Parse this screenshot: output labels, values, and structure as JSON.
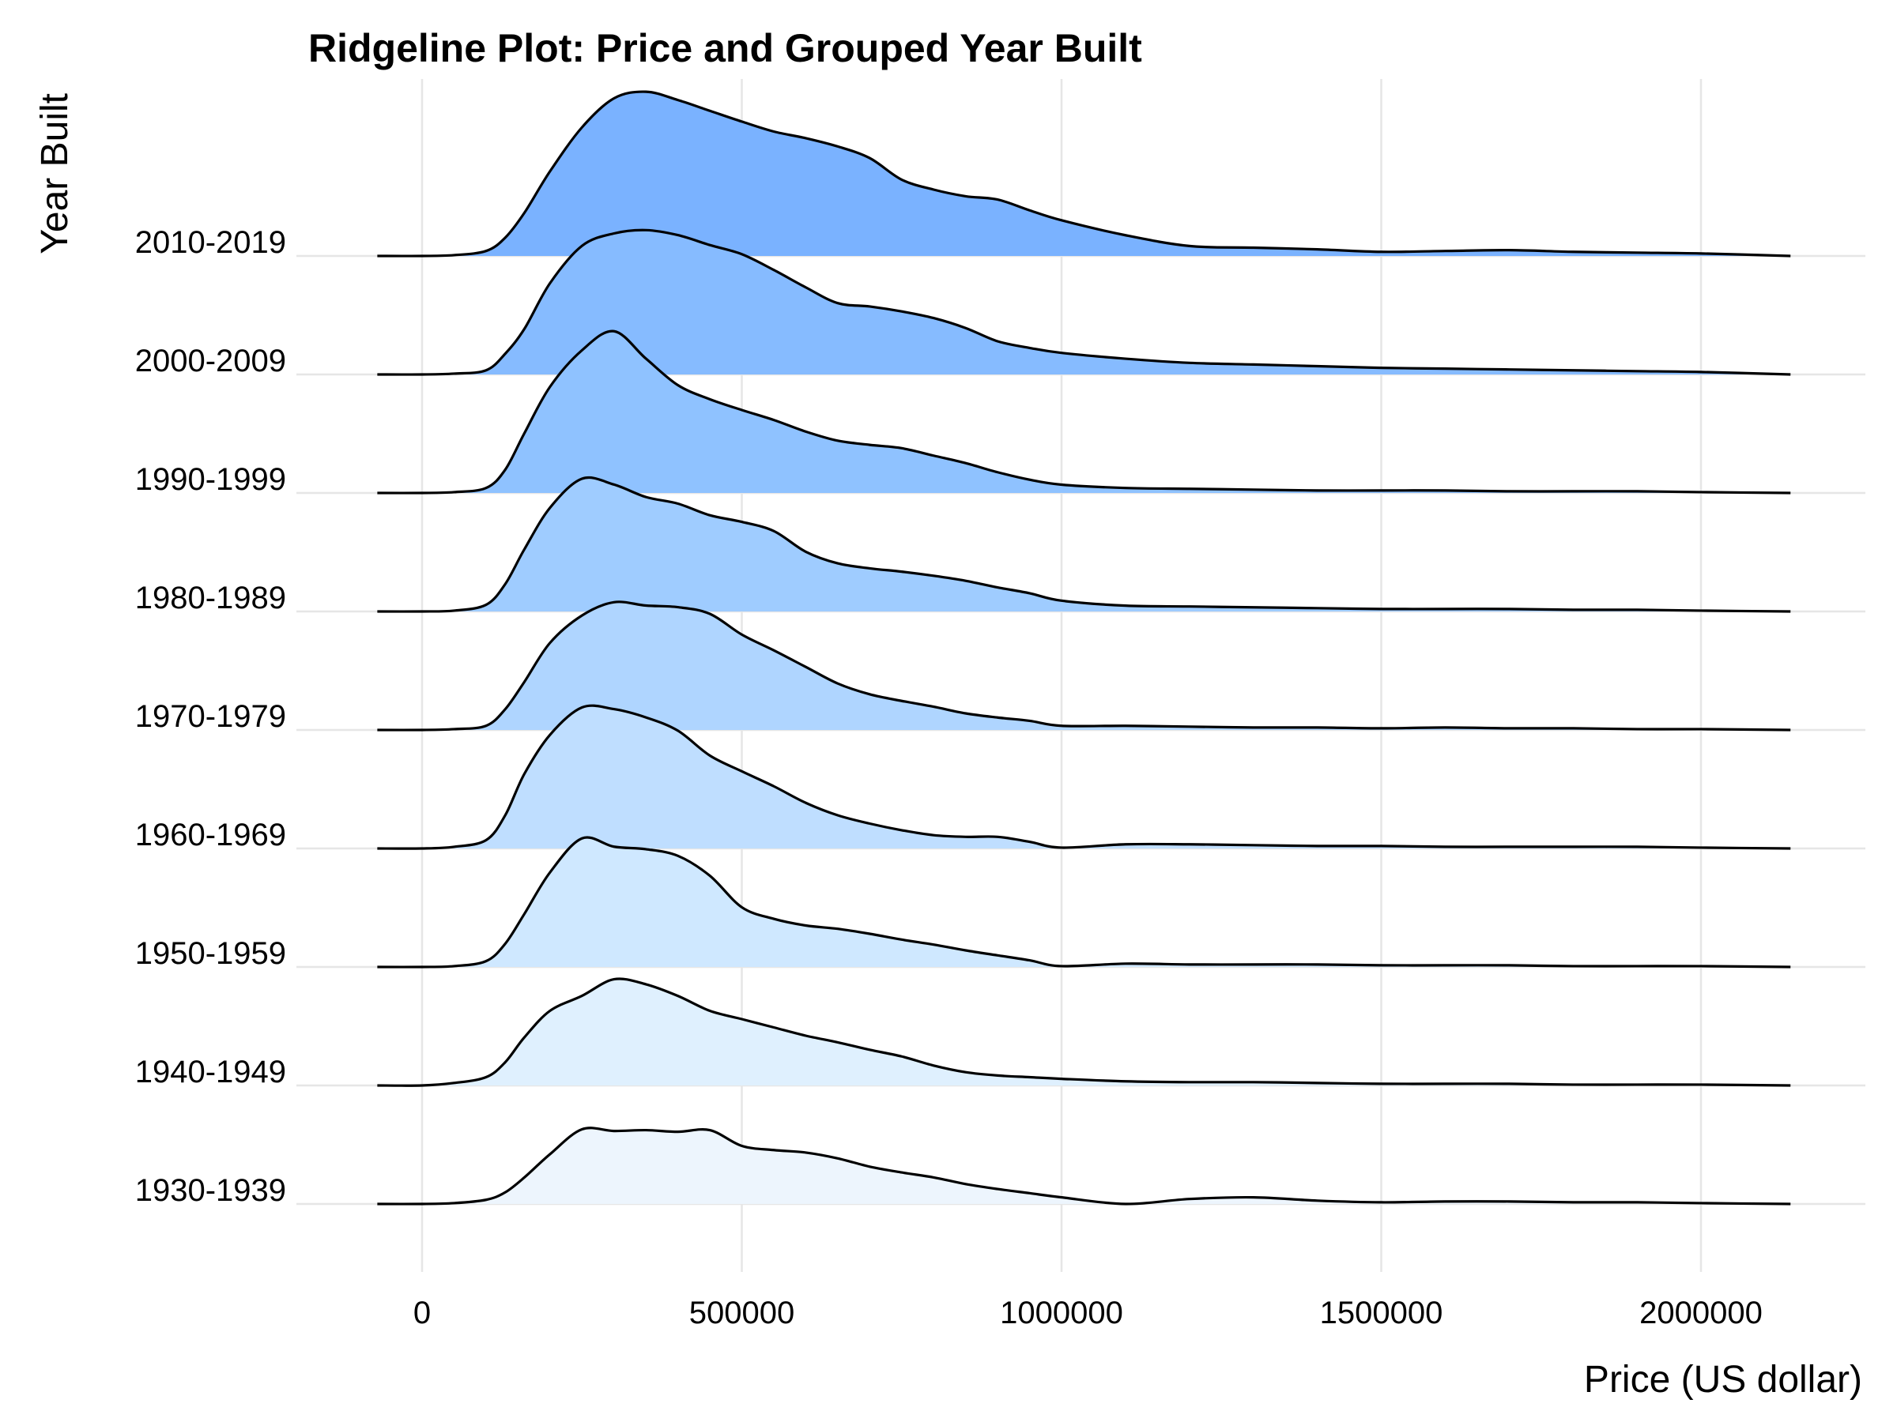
{
  "chart_data": {
    "type": "ridgeline",
    "title": "Ridgeline Plot: Price and Grouped Year Built",
    "xlabel": "Price (US dollar)",
    "ylabel": "Year Built",
    "xlim": [
      -200000,
      2250000
    ],
    "x_ticks": [
      0,
      500000,
      1000000,
      1500000,
      2000000
    ],
    "x_tick_labels": [
      "0",
      "500000",
      "1000000",
      "1500000",
      "2000000"
    ],
    "grid": true,
    "legend": "none",
    "x": [
      -70000,
      0,
      50000,
      100000,
      130000,
      160000,
      200000,
      250000,
      300000,
      350000,
      400000,
      450000,
      500000,
      550000,
      600000,
      650000,
      700000,
      750000,
      800000,
      850000,
      900000,
      950000,
      1000000,
      1100000,
      1200000,
      1300000,
      1400000,
      1500000,
      1600000,
      1700000,
      1800000,
      1900000,
      2000000,
      2140000
    ],
    "series": [
      {
        "name": "1930-1939",
        "color": "#edf5fd",
        "values": [
          0,
          0,
          0.01,
          0.05,
          0.14,
          0.32,
          0.6,
          0.9,
          0.88,
          0.89,
          0.87,
          0.89,
          0.7,
          0.65,
          0.62,
          0.55,
          0.45,
          0.38,
          0.32,
          0.24,
          0.18,
          0.13,
          0.08,
          0.0,
          0.06,
          0.08,
          0.04,
          0.02,
          0.03,
          0.03,
          0.02,
          0.02,
          0.01,
          0
        ]
      },
      {
        "name": "1940-1949",
        "color": "#dff0fe",
        "values": [
          0,
          0,
          0.03,
          0.1,
          0.28,
          0.58,
          0.9,
          1.08,
          1.28,
          1.22,
          1.08,
          0.9,
          0.8,
          0.7,
          0.6,
          0.52,
          0.43,
          0.35,
          0.24,
          0.16,
          0.12,
          0.1,
          0.08,
          0.05,
          0.04,
          0.04,
          0.03,
          0.02,
          0.02,
          0.02,
          0.01,
          0.01,
          0.01,
          0
        ]
      },
      {
        "name": "1950-1959",
        "color": "#cfe8ff",
        "values": [
          0,
          0,
          0.01,
          0.07,
          0.28,
          0.64,
          1.14,
          1.55,
          1.45,
          1.42,
          1.34,
          1.1,
          0.72,
          0.58,
          0.5,
          0.46,
          0.4,
          0.33,
          0.27,
          0.2,
          0.14,
          0.08,
          0.01,
          0.04,
          0.03,
          0.03,
          0.03,
          0.02,
          0.02,
          0.02,
          0.01,
          0.01,
          0.01,
          0
        ]
      },
      {
        "name": "1960-1969",
        "color": "#bfdeff",
        "values": [
          0,
          0,
          0.02,
          0.1,
          0.4,
          0.9,
          1.37,
          1.7,
          1.68,
          1.58,
          1.42,
          1.12,
          0.93,
          0.75,
          0.55,
          0.4,
          0.3,
          0.22,
          0.16,
          0.14,
          0.14,
          0.08,
          0.01,
          0.05,
          0.05,
          0.04,
          0.03,
          0.03,
          0.02,
          0.02,
          0.02,
          0.02,
          0.01,
          0
        ]
      },
      {
        "name": "1970-1979",
        "color": "#afd5ff",
        "values": [
          0,
          0,
          0.01,
          0.05,
          0.25,
          0.58,
          1.05,
          1.38,
          1.54,
          1.5,
          1.48,
          1.4,
          1.15,
          0.96,
          0.76,
          0.56,
          0.43,
          0.35,
          0.28,
          0.2,
          0.15,
          0.11,
          0.05,
          0.05,
          0.04,
          0.03,
          0.03,
          0.02,
          0.03,
          0.02,
          0.02,
          0.01,
          0.01,
          0
        ]
      },
      {
        "name": "1980-1989",
        "color": "#9fccff",
        "values": [
          0,
          0,
          0.01,
          0.08,
          0.33,
          0.75,
          1.25,
          1.6,
          1.53,
          1.38,
          1.3,
          1.16,
          1.08,
          0.97,
          0.72,
          0.58,
          0.52,
          0.48,
          0.43,
          0.37,
          0.29,
          0.22,
          0.13,
          0.07,
          0.06,
          0.05,
          0.04,
          0.03,
          0.03,
          0.03,
          0.02,
          0.02,
          0.01,
          0
        ]
      },
      {
        "name": "1990-1999",
        "color": "#8fc2ff",
        "values": [
          0,
          0,
          0.01,
          0.06,
          0.28,
          0.72,
          1.28,
          1.72,
          1.95,
          1.62,
          1.3,
          1.13,
          1.0,
          0.88,
          0.74,
          0.63,
          0.58,
          0.54,
          0.45,
          0.36,
          0.25,
          0.16,
          0.1,
          0.06,
          0.05,
          0.04,
          0.03,
          0.03,
          0.03,
          0.02,
          0.02,
          0.02,
          0.01,
          0
        ]
      },
      {
        "name": "2000-2009",
        "color": "#86bbff",
        "values": [
          0,
          0,
          0.01,
          0.05,
          0.25,
          0.55,
          1.1,
          1.55,
          1.7,
          1.74,
          1.68,
          1.56,
          1.45,
          1.26,
          1.05,
          0.86,
          0.82,
          0.76,
          0.68,
          0.56,
          0.4,
          0.32,
          0.26,
          0.19,
          0.14,
          0.12,
          0.1,
          0.08,
          0.07,
          0.06,
          0.05,
          0.04,
          0.03,
          0
        ]
      },
      {
        "name": "2010-2019",
        "color": "#7ab2ff",
        "values": [
          0,
          0,
          0.01,
          0.06,
          0.22,
          0.52,
          1.02,
          1.55,
          1.9,
          1.98,
          1.88,
          1.75,
          1.62,
          1.5,
          1.42,
          1.32,
          1.18,
          0.92,
          0.8,
          0.72,
          0.68,
          0.55,
          0.43,
          0.25,
          0.12,
          0.1,
          0.08,
          0.05,
          0.06,
          0.07,
          0.05,
          0.04,
          0.03,
          0
        ]
      }
    ]
  }
}
